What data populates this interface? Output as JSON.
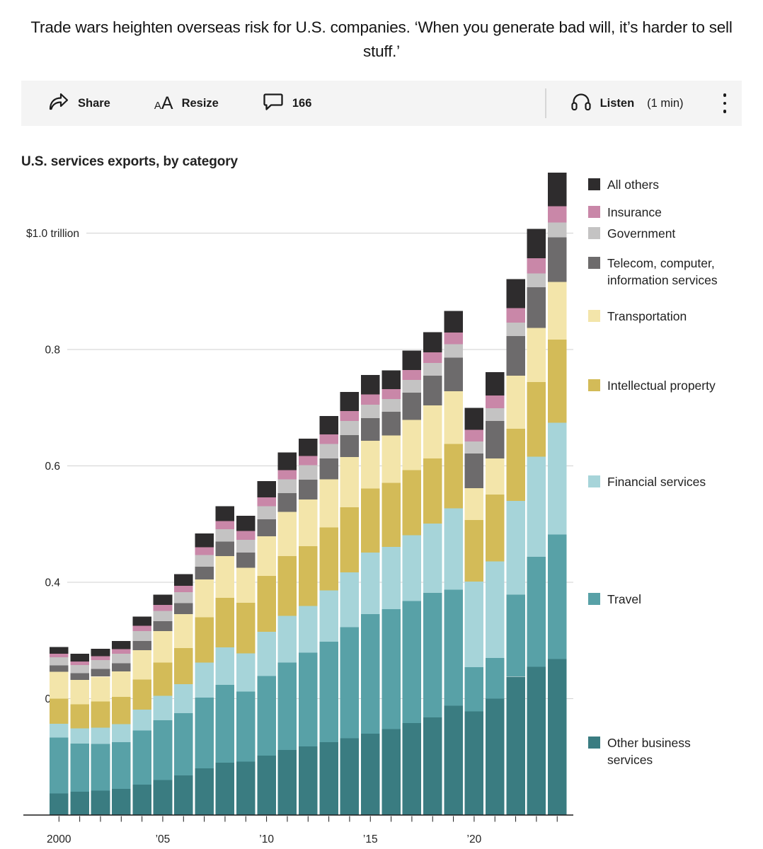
{
  "headline": {
    "text": "Trade wars heighten overseas risk for U.S. companies. ‘When you generate bad will, it’s harder to sell stuff.’"
  },
  "toolbar": {
    "share_label": "Share",
    "resize_label": "Resize",
    "comment_count": "166",
    "listen_label": "Listen",
    "listen_duration": "(1 min)",
    "icons": [
      "share-arrow-icon",
      "resize-aa-icon",
      "comment-bubble-icon",
      "headphones-icon",
      "kebab-menu-icon"
    ]
  },
  "chart": {
    "title": "U.S. services exports, by category"
  },
  "chart_data": {
    "type": "bar",
    "stacked": true,
    "title": "U.S. services exports, by category",
    "unit": "billions of U.S. dollars (axis shown in trillions)",
    "x": [
      2000,
      2001,
      2002,
      2003,
      2004,
      2005,
      2006,
      2007,
      2008,
      2009,
      2010,
      2011,
      2012,
      2013,
      2014,
      2015,
      2016,
      2017,
      2018,
      2019,
      2020,
      2021,
      2022,
      2023,
      2024
    ],
    "x_tick_labels": [
      {
        "year": 2000,
        "label": "2000"
      },
      {
        "year": 2005,
        "label": "’05"
      },
      {
        "year": 2010,
        "label": "’10"
      },
      {
        "year": 2015,
        "label": "’15"
      },
      {
        "year": 2020,
        "label": "’20"
      }
    ],
    "y_axis": {
      "ticks_billions": [
        0,
        200,
        400,
        600,
        800,
        1000
      ],
      "tick_labels": [
        "0",
        "0.2",
        "0.4",
        "0.6",
        "0.8",
        "$1.0 trillion"
      ],
      "range_billions": [
        0,
        1120
      ],
      "grid": true
    },
    "legend_position": "right",
    "series_bottom_to_top": [
      {
        "name": "Other business services",
        "color": "#3a7c81",
        "values": [
          37,
          40,
          42,
          45,
          52,
          60,
          68,
          80,
          90,
          92,
          102,
          112,
          118,
          125,
          132,
          140,
          148,
          158,
          168,
          188,
          178,
          200,
          238,
          255,
          268
        ]
      },
      {
        "name": "Travel",
        "color": "#58a1a7",
        "values": [
          96,
          83,
          80,
          80,
          93,
          103,
          107,
          122,
          134,
          120,
          137,
          150,
          161,
          173,
          191,
          205,
          206,
          210,
          214,
          199,
          76,
          70,
          141,
          189,
          214
        ]
      },
      {
        "name": "Financial services",
        "color": "#a6d4d9",
        "values": [
          24,
          26,
          28,
          31,
          36,
          42,
          50,
          60,
          64,
          66,
          76,
          80,
          80,
          88,
          94,
          106,
          107,
          113,
          119,
          140,
          147,
          166,
          161,
          172,
          192
        ]
      },
      {
        "name": "Intellectual property",
        "color": "#d3bb58",
        "values": [
          43,
          41,
          45,
          47,
          52,
          57,
          62,
          78,
          85,
          87,
          96,
          103,
          103,
          108,
          112,
          110,
          110,
          112,
          112,
          111,
          106,
          115,
          124,
          128,
          143
        ]
      },
      {
        "name": "Transportation",
        "color": "#f3e5aa",
        "values": [
          46,
          42,
          43,
          44,
          50,
          54,
          58,
          65,
          72,
          60,
          68,
          76,
          80,
          83,
          86,
          82,
          81,
          86,
          91,
          90,
          55,
          62,
          91,
          93,
          99
        ]
      },
      {
        "name": "Telecom, computer, information services",
        "color": "#6d6b6c",
        "values": [
          11,
          12,
          13,
          14,
          16,
          17,
          19,
          22,
          25,
          26,
          29,
          32,
          34,
          36,
          38,
          39,
          41,
          47,
          51,
          58,
          59,
          64,
          68,
          70,
          77
        ]
      },
      {
        "name": "Government",
        "color": "#c4c3c3",
        "values": [
          14,
          14,
          15,
          16,
          17,
          18,
          19,
          20,
          21,
          22,
          23,
          24,
          25,
          25,
          24,
          23,
          22,
          22,
          22,
          23,
          21,
          22,
          23,
          24,
          25
        ]
      },
      {
        "name": "Insurance",
        "color": "#c987a8",
        "values": [
          6,
          6,
          7,
          8,
          9,
          10,
          11,
          13,
          14,
          15,
          15,
          16,
          16,
          16,
          17,
          18,
          17,
          17,
          18,
          20,
          20,
          22,
          25,
          26,
          28
        ]
      },
      {
        "name": "All others",
        "color": "#2e2c2d",
        "values": [
          12,
          13,
          13,
          14,
          16,
          18,
          20,
          24,
          26,
          26,
          28,
          30,
          30,
          32,
          33,
          33,
          32,
          33,
          35,
          37,
          38,
          40,
          50,
          50,
          58
        ]
      }
    ]
  }
}
